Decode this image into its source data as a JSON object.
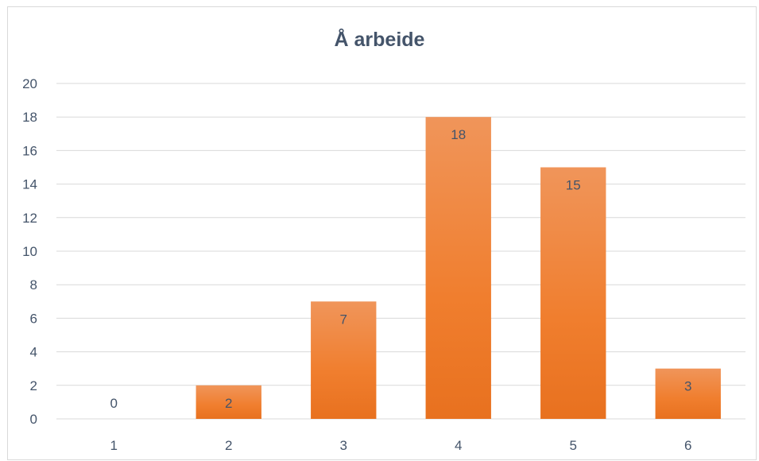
{
  "chart_data": {
    "type": "bar",
    "title": "Å arbeide",
    "categories": [
      "1",
      "2",
      "3",
      "4",
      "5",
      "6"
    ],
    "values": [
      0,
      2,
      7,
      18,
      15,
      3
    ],
    "ylim": [
      0,
      20
    ],
    "yticks": [
      0,
      2,
      4,
      6,
      8,
      10,
      12,
      14,
      16,
      18,
      20
    ],
    "grid": true,
    "data_labels": true,
    "bar_color_top": "#f0955a",
    "bar_color_bottom": "#e8711f",
    "grid_color": "#d9d9d9",
    "text_color": "#44546a"
  }
}
